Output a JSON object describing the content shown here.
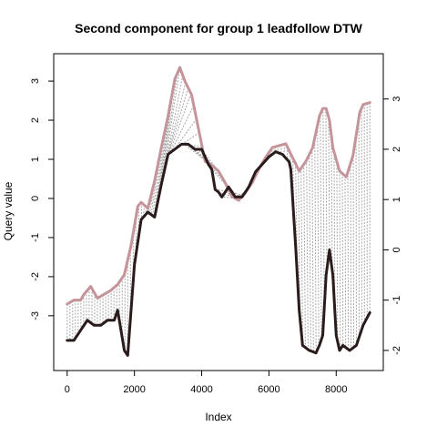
{
  "chart_data": {
    "type": "line",
    "title": "Second component for group 1 leadfollow DTW",
    "xlabel": "Index",
    "ylabel": "Query value",
    "xlim": [
      -400,
      9400
    ],
    "ylim": [
      -4.4,
      3.7
    ],
    "right_ylim": [
      -2.4,
      3.9
    ],
    "x_ticks": [
      0,
      2000,
      4000,
      6000,
      8000
    ],
    "y_ticks": [
      -3,
      -2,
      -1,
      0,
      1,
      2,
      3
    ],
    "right_y_ticks": [
      -2,
      -1,
      0,
      1,
      2,
      3
    ],
    "grid": false,
    "legend": "none",
    "colors": {
      "query": "#c4949a",
      "reference": "#2a1c1c",
      "alignment": "#a6a6a6"
    },
    "series": [
      {
        "role": "query",
        "axis": "left",
        "x": [
          0,
          200,
          400,
          500,
          700,
          900,
          1100,
          1300,
          1500,
          1700,
          1900,
          2100,
          2200,
          2400,
          2600,
          2800,
          3000,
          3200,
          3350,
          3500,
          3700,
          3900,
          4100,
          4300,
          4500,
          4700,
          4900,
          5100,
          5300,
          5500,
          5700,
          5900,
          6100,
          6300,
          6500,
          6700,
          6900,
          7100,
          7300,
          7500,
          7600,
          7700,
          7800,
          7900,
          8100,
          8300,
          8500,
          8700,
          8800,
          9000
        ],
        "values": [
          -2.7,
          -2.6,
          -2.6,
          -2.45,
          -2.25,
          -2.55,
          -2.45,
          -2.35,
          -2.2,
          -1.95,
          -1.2,
          -0.2,
          -0.1,
          -0.25,
          0.45,
          1.3,
          2.1,
          3.05,
          3.35,
          3.0,
          2.65,
          1.8,
          0.95,
          0.85,
          0.7,
          0.4,
          0.05,
          -0.05,
          0.15,
          0.4,
          0.75,
          1.05,
          1.3,
          1.35,
          1.4,
          1.05,
          0.7,
          0.95,
          1.3,
          2.1,
          2.3,
          2.3,
          2.0,
          1.3,
          0.7,
          0.55,
          1.1,
          2.2,
          2.4,
          2.45
        ]
      },
      {
        "role": "reference",
        "axis": "right",
        "x": [
          0,
          200,
          400,
          600,
          800,
          1000,
          1200,
          1400,
          1500,
          1600,
          1700,
          1800,
          2000,
          2200,
          2400,
          2600,
          2800,
          3000,
          3200,
          3400,
          3600,
          3800,
          4000,
          4200,
          4300,
          4400,
          4500,
          4600,
          4800,
          5000,
          5200,
          5400,
          5600,
          5800,
          6000,
          6200,
          6400,
          6600,
          6650,
          6800,
          6900,
          7000,
          7200,
          7400,
          7500,
          7600,
          7700,
          7800,
          7900,
          8000,
          8100,
          8200,
          8400,
          8600,
          8800,
          9000
        ],
        "values": [
          -1.8,
          -1.8,
          -1.6,
          -1.4,
          -1.5,
          -1.5,
          -1.4,
          -1.4,
          -1.2,
          -1.6,
          -2.0,
          -2.1,
          -0.3,
          0.6,
          0.75,
          0.65,
          1.3,
          1.9,
          2.0,
          2.1,
          2.1,
          2.0,
          2.0,
          1.7,
          1.6,
          1.2,
          1.15,
          1.05,
          1.25,
          1.05,
          1.05,
          1.25,
          1.55,
          1.7,
          1.85,
          1.95,
          1.9,
          1.75,
          1.6,
          0.0,
          -1.2,
          -1.9,
          -2.0,
          -2.05,
          -1.9,
          -1.7,
          -0.5,
          0.0,
          -0.5,
          -1.7,
          -2.0,
          -1.9,
          -2.0,
          -1.9,
          -1.5,
          -1.25
        ]
      }
    ]
  }
}
